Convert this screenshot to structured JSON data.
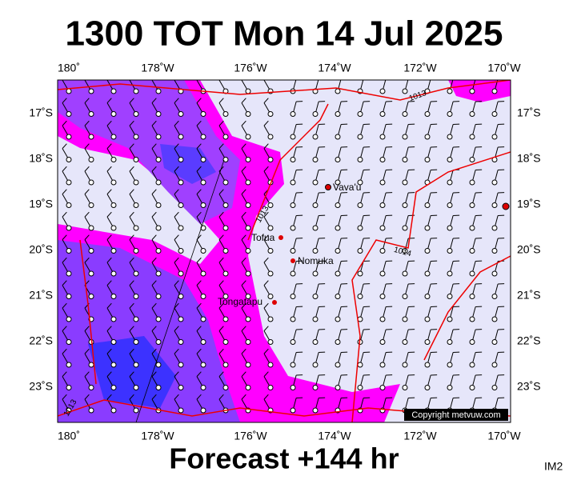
{
  "header": {
    "title": "1300 TOT Mon 14 Jul 2025"
  },
  "footer": {
    "forecast": "Forecast +144 hr",
    "corner": "IM2"
  },
  "map": {
    "lon_labels": [
      "180˚",
      "178˚W",
      "176˚W",
      "174˚W",
      "172˚W",
      "170˚W"
    ],
    "lat_labels": [
      "17˚S",
      "18˚S",
      "19˚S",
      "20˚S",
      "21˚S",
      "22˚S",
      "23˚S"
    ],
    "places": [
      "Vava'u",
      "Tofua",
      "Nomuka",
      "Tongatapu"
    ],
    "isobar_labels": [
      "1013",
      "1013",
      "1014",
      "1013"
    ],
    "copyright": "Copyright metvuw.com"
  }
}
